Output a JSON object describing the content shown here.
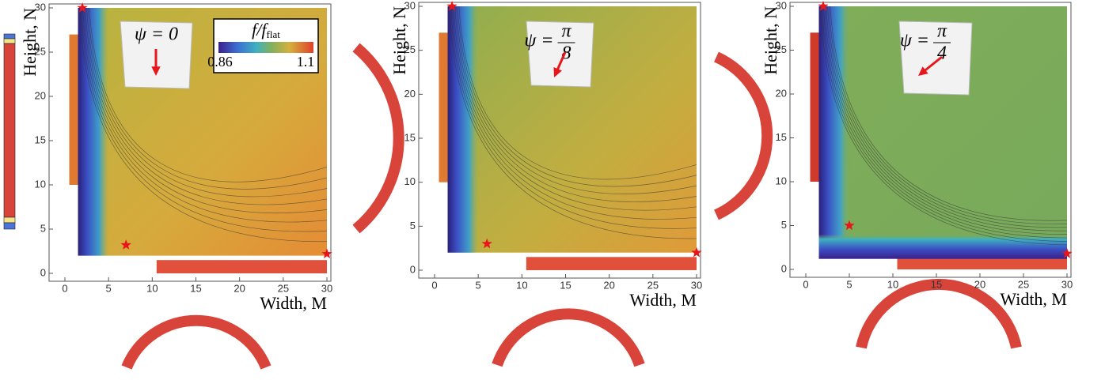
{
  "chart_data": [
    {
      "type": "heatmap",
      "annotation": "ψ = 0",
      "xlabel": "Width, M",
      "ylabel": "Height, N",
      "xlim": [
        0,
        30
      ],
      "ylim": [
        0,
        30
      ],
      "xticks": [
        0,
        5,
        10,
        15,
        20,
        25,
        30
      ],
      "yticks": [
        0,
        5,
        10,
        15,
        20,
        25,
        30
      ],
      "points": {
        "x": [
          2,
          7,
          30
        ],
        "y": [
          30,
          3.2,
          2.2
        ],
        "color": "#e8161b"
      },
      "colorbar": {
        "label": "f/f",
        "label_subscript": "flat",
        "ticks": [
          0.86,
          1.1
        ]
      }
    },
    {
      "type": "heatmap",
      "annotation": "ψ =",
      "fraction": {
        "numerator": "π",
        "denominator": "8"
      },
      "xlabel": "Width, M",
      "ylabel": "Height, N",
      "xlim": [
        0,
        30
      ],
      "ylim": [
        0,
        30
      ],
      "xticks": [
        0,
        5,
        10,
        15,
        20,
        25,
        30
      ],
      "yticks": [
        0,
        5,
        10,
        15,
        20,
        25,
        30
      ],
      "points": {
        "x": [
          2,
          6,
          30
        ],
        "y": [
          30,
          3,
          2
        ],
        "color": "#e8161b"
      }
    },
    {
      "type": "heatmap",
      "annotation": "ψ =",
      "fraction": {
        "numerator": "π",
        "denominator": "4"
      },
      "xlabel": "Width, M",
      "ylabel": "Height, N",
      "xlim": [
        0,
        30
      ],
      "ylim": [
        0,
        30
      ],
      "xticks": [
        0,
        5,
        10,
        15,
        20,
        25,
        30
      ],
      "yticks": [
        0,
        5,
        10,
        15,
        20,
        25,
        30
      ],
      "points": {
        "x": [
          2,
          5,
          30
        ],
        "y": [
          30,
          5,
          1.8
        ],
        "color": "#e8161b"
      }
    }
  ]
}
